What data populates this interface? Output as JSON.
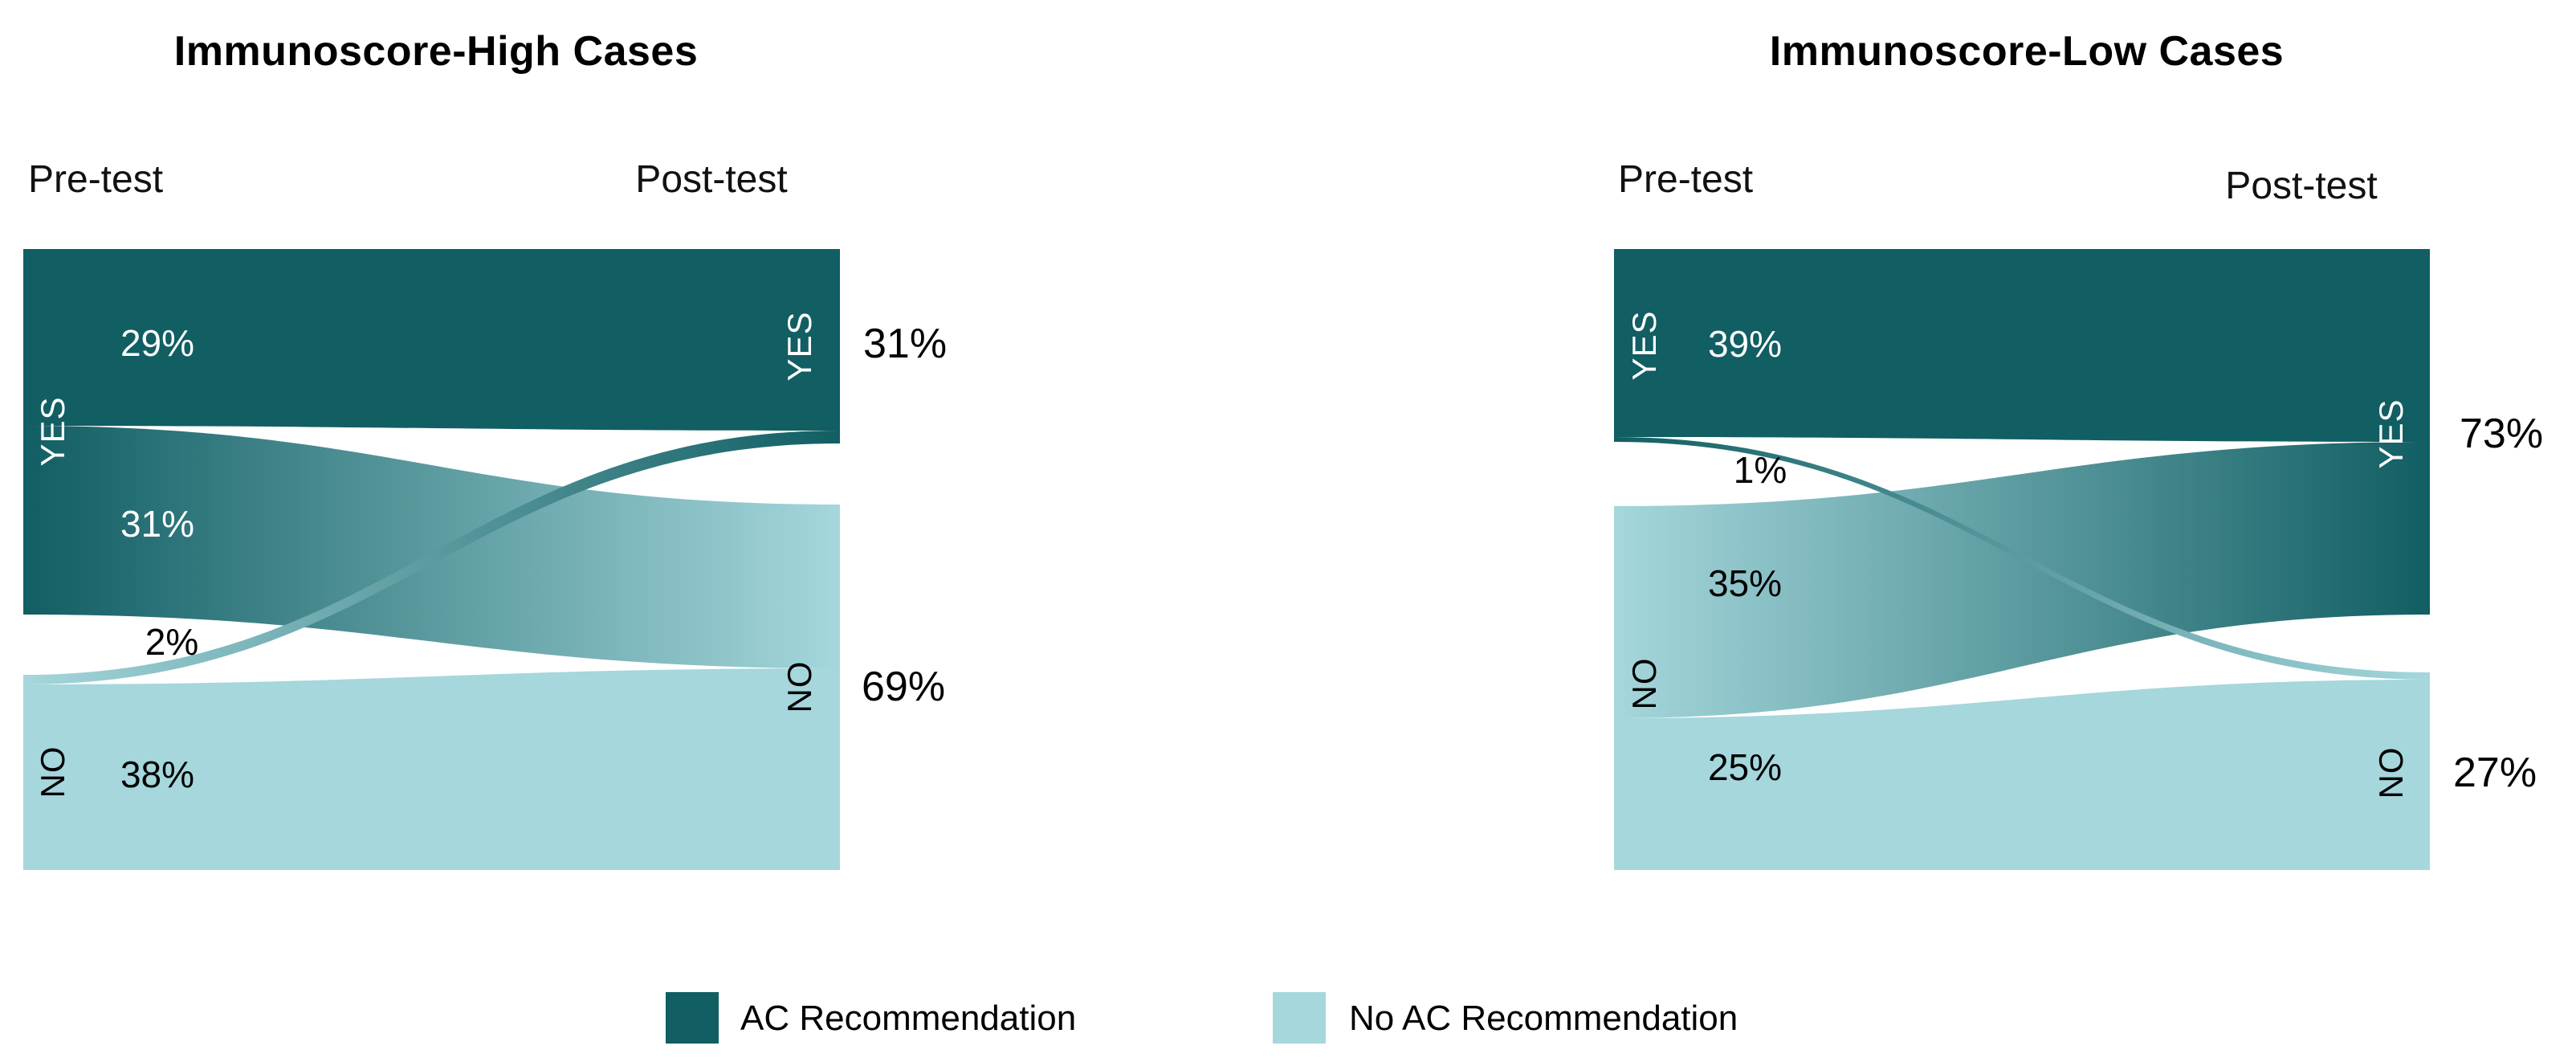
{
  "colors": {
    "dark_teal": "#115E63",
    "light_teal": "#A5D7DC",
    "text": "#000000",
    "background": "#FFFFFF"
  },
  "legend": {
    "items": [
      {
        "label": "AC Recommendation",
        "color": "#115E63"
      },
      {
        "label": "No AC Recommendation",
        "color": "#A5D7DC"
      }
    ]
  },
  "chart_data": [
    {
      "type": "sankey",
      "title": "Immunoscore-High Cases",
      "col_labels": {
        "pre": "Pre-test",
        "post": "Post-test"
      },
      "nodes": {
        "pre_yes": {
          "label": "YES",
          "side": "pre",
          "pct": 60
        },
        "pre_no": {
          "label": "NO",
          "side": "pre",
          "pct": 40
        },
        "post_yes": {
          "label": "YES",
          "side": "post",
          "pct": 31
        },
        "post_no": {
          "label": "NO",
          "side": "post",
          "pct": 69
        }
      },
      "flows": [
        {
          "from": "YES",
          "to": "YES",
          "pct": 29,
          "label": "29%",
          "kind": "yes",
          "band": [
            0,
            220,
            0,
            226
          ]
        },
        {
          "from": "YES",
          "to": "NO",
          "pct": 31,
          "label": "31%",
          "kind": "yes_to_no",
          "band": [
            220,
            455,
            318,
            522
          ]
        },
        {
          "from": "NO",
          "to": "YES",
          "pct": 2,
          "label": "2%",
          "kind": "no_to_yes",
          "band": [
            530,
            542,
            226,
            242
          ]
        },
        {
          "from": "NO",
          "to": "NO",
          "pct": 38,
          "label": "38%",
          "kind": "no",
          "band": [
            542,
            773,
            522,
            773
          ]
        }
      ],
      "post_totals": {
        "yes": "31%",
        "no": "69%"
      }
    },
    {
      "type": "sankey",
      "title": "Immunoscore-Low Cases",
      "col_labels": {
        "pre": "Pre-test",
        "post": "Post-test"
      },
      "nodes": {
        "pre_yes": {
          "label": "YES",
          "side": "pre",
          "pct": 40
        },
        "pre_no": {
          "label": "NO",
          "side": "pre",
          "pct": 60
        },
        "post_yes": {
          "label": "YES",
          "side": "post",
          "pct": 73
        },
        "post_no": {
          "label": "NO",
          "side": "post",
          "pct": 27
        }
      },
      "flows": [
        {
          "from": "YES",
          "to": "YES",
          "pct": 39,
          "label": "39%",
          "kind": "yes",
          "band": [
            0,
            234,
            0,
            240
          ]
        },
        {
          "from": "YES",
          "to": "NO",
          "pct": 1,
          "label": "1%",
          "kind": "yes_to_no",
          "band": [
            234,
            240,
            527,
            536
          ]
        },
        {
          "from": "NO",
          "to": "YES",
          "pct": 35,
          "label": "35%",
          "kind": "no_to_yes",
          "band": [
            320,
            584,
            240,
            455
          ]
        },
        {
          "from": "NO",
          "to": "NO",
          "pct": 25,
          "label": "25%",
          "kind": "no",
          "band": [
            584,
            773,
            536,
            773
          ]
        }
      ],
      "post_totals": {
        "yes": "73%",
        "no": "27%"
      }
    }
  ]
}
